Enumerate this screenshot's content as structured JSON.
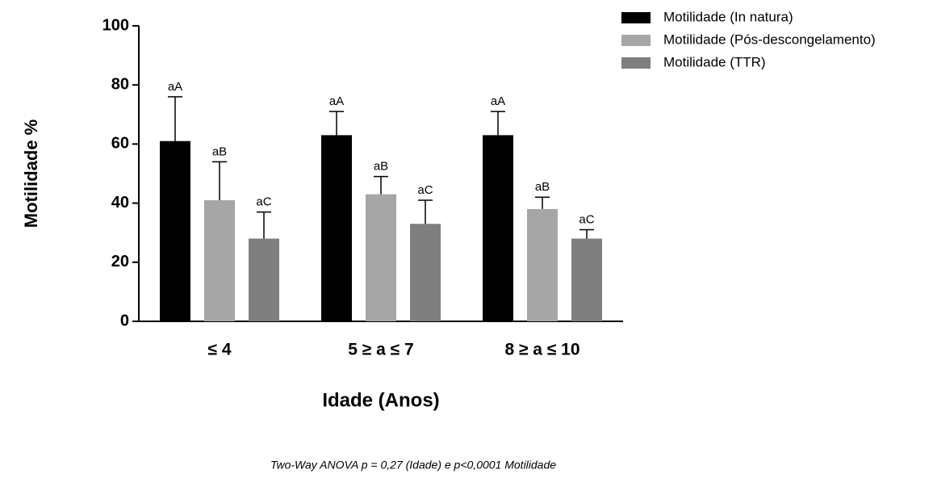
{
  "chart_data": {
    "type": "bar",
    "categories": [
      "≤ 4",
      "5 ≥ a ≤ 7",
      "8 ≥ a ≤ 10"
    ],
    "series": [
      {
        "name": "Motilidade (In natura)",
        "color": "#000000",
        "values": [
          61,
          63,
          63
        ],
        "errors": [
          15,
          8,
          8
        ],
        "labels": [
          "aA",
          "aA",
          "aA"
        ]
      },
      {
        "name": "Motilidade (Pós-descongelamento)",
        "color": "#a6a6a6",
        "values": [
          41,
          43,
          38
        ],
        "errors": [
          13,
          6,
          4
        ],
        "labels": [
          "aB",
          "aB",
          "aB"
        ]
      },
      {
        "name": "Motilidade (TTR)",
        "color": "#7f7f7f",
        "values": [
          28,
          33,
          28
        ],
        "errors": [
          9,
          8,
          3
        ],
        "labels": [
          "aC",
          "aC",
          "aC"
        ]
      }
    ],
    "ylim": [
      0,
      100
    ],
    "yticks": [
      0,
      20,
      40,
      60,
      80,
      100
    ],
    "ylabel": "Motilidade %",
    "xlabel": "Idade (Anos)",
    "footnote": "Two-Way ANOVA p = 0,27 (Idade) e p<0,0001 Motilidade",
    "legend": "top-right"
  }
}
